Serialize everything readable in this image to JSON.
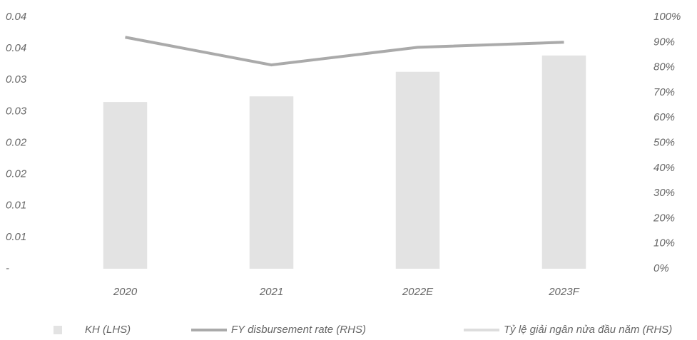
{
  "chart_data": {
    "type": "bar",
    "categories": [
      "2020",
      "2021",
      "2022E",
      "2023F"
    ],
    "series": [
      {
        "name": "KH (LHS)",
        "color": "#e3e3e3",
        "values": [
          0.0265,
          0.0274,
          0.0313,
          0.0339
        ]
      },
      {
        "name": "FY disbursement rate (RHS)",
        "color": "#aaaaaa",
        "axis": "y2",
        "type": "line",
        "values": [
          92,
          81,
          88,
          90
        ]
      },
      {
        "name": "Tỷ lệ giải ngân nửa đầu năm (RHS)",
        "color": "#dddddd",
        "axis": "y2",
        "type": "line",
        "values": [
          null,
          null,
          null,
          null
        ]
      }
    ],
    "ylim": [
      0,
      0.04
    ],
    "yticks": [
      {
        "value": 0,
        "label": "-"
      },
      {
        "value": 0.005,
        "label": "0.01"
      },
      {
        "value": 0.01,
        "label": "0.01"
      },
      {
        "value": 0.015,
        "label": "0.02"
      },
      {
        "value": 0.02,
        "label": "0.02"
      },
      {
        "value": 0.025,
        "label": "0.03"
      },
      {
        "value": 0.03,
        "label": "0.03"
      },
      {
        "value": 0.035,
        "label": "0.04"
      },
      {
        "value": 0.04,
        "label": "0.04"
      }
    ],
    "y2lim": [
      0,
      100
    ],
    "y2ticks": [
      {
        "value": 0,
        "label": "0%"
      },
      {
        "value": 10,
        "label": "10%"
      },
      {
        "value": 20,
        "label": "20%"
      },
      {
        "value": 30,
        "label": "30%"
      },
      {
        "value": 40,
        "label": "40%"
      },
      {
        "value": 50,
        "label": "50%"
      },
      {
        "value": 60,
        "label": "60%"
      },
      {
        "value": 70,
        "label": "70%"
      },
      {
        "value": 80,
        "label": "80%"
      },
      {
        "value": 90,
        "label": "90%"
      },
      {
        "value": 100,
        "label": "100%"
      }
    ],
    "grid": false
  }
}
